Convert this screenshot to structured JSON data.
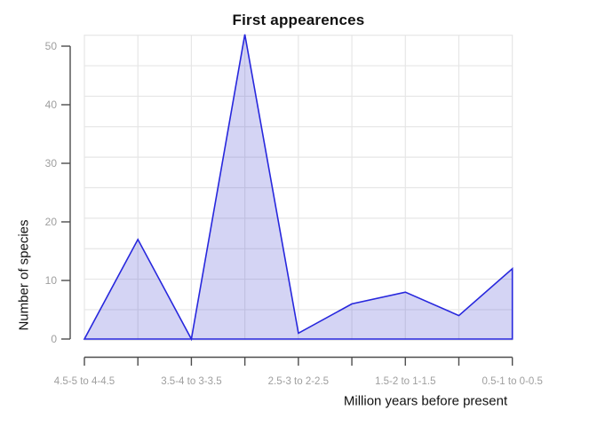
{
  "chart_data": {
    "type": "area",
    "title": "First appearences",
    "xlabel": "Million years before present",
    "ylabel": "Number of species",
    "values": [
      0,
      17,
      0,
      52,
      1,
      6,
      8,
      4,
      12
    ],
    "x_tick_count": 9,
    "x_tick_labels": [
      {
        "index": 0,
        "label": "4.5-5 to 4-4.5"
      },
      {
        "index": 2,
        "label": "3.5-4 to 3-3.5"
      },
      {
        "index": 4,
        "label": "2.5-3 to 2-2.5"
      },
      {
        "index": 6,
        "label": "1.5-2 to 1-1.5"
      },
      {
        "index": 8,
        "label": "0.5-1 to 0-0.5"
      }
    ],
    "y_ticks": [
      0,
      10,
      20,
      30,
      40,
      50
    ],
    "ylim": [
      0,
      52
    ],
    "grid": true,
    "legend": "none",
    "colors": {
      "line": "#2727dd",
      "fill": "rgba(82,82,213,0.25)",
      "grid": "#e6e6e6",
      "axis": "#4d4d4d",
      "tick_label": "#9e9e9e",
      "text": "#111111"
    }
  }
}
